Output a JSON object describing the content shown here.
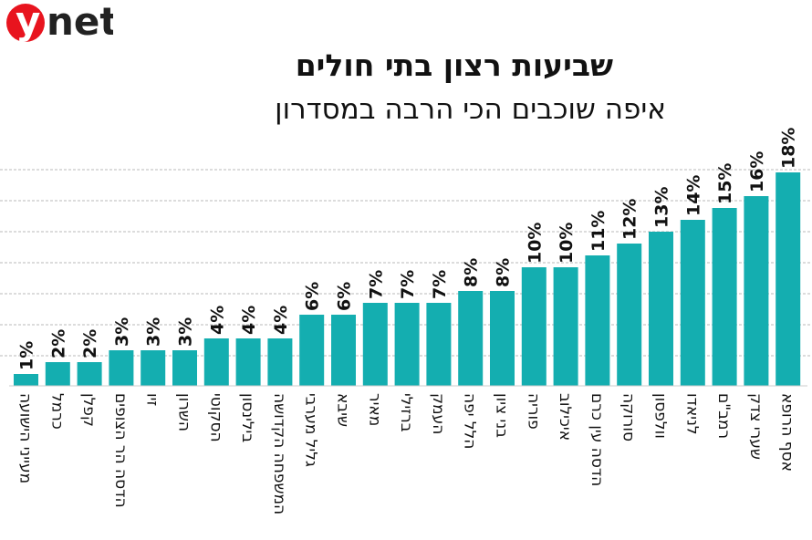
{
  "logo": {
    "text": "ynet",
    "accent": "#e8141e"
  },
  "chart_data": {
    "type": "bar",
    "title": "שביעות רצון בתי חולים",
    "subtitle": "איפה שוכבים הכי הרבה במסדרון",
    "xlabel": "",
    "ylabel": "",
    "ylim": [
      0,
      18
    ],
    "grid": true,
    "bar_color": "#14aeb0",
    "value_suffix": "%",
    "categories": [
      "מעייני הישועה",
      "כרמל",
      "קפלן",
      "הדסה הר הצופים",
      "זיו",
      "השרון",
      "הסקוטי",
      "בילינסון",
      "המשפחה הקדושה",
      "גליל מערבי",
      "שיבא",
      "מאיר",
      "ברזילי",
      "העמק",
      "הלל יפה",
      "בני ציון",
      "פוריה",
      "איכילוב",
      "הדסה עין כרם",
      "סורוקה",
      "וולפסון",
      "לניאדו",
      "רמב\"ם",
      "שערי צדק",
      "אסף הרופא"
    ],
    "values": [
      1,
      2,
      2,
      3,
      3,
      3,
      4,
      4,
      4,
      6,
      6,
      7,
      7,
      7,
      8,
      8,
      10,
      10,
      11,
      12,
      13,
      14,
      15,
      16,
      18
    ]
  }
}
